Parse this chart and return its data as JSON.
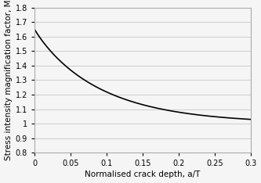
{
  "title": "",
  "xlabel": "Normalised crack depth, a/T",
  "ylabel": "Stress intensity magnification factor, M",
  "xlim": [
    0,
    0.3
  ],
  "ylim": [
    0.8,
    1.8
  ],
  "xticks": [
    0,
    0.05,
    0.1,
    0.15,
    0.2,
    0.25,
    0.3
  ],
  "yticks": [
    0.8,
    0.9,
    1.0,
    1.1,
    1.2,
    1.3,
    1.4,
    1.5,
    1.6,
    1.7,
    1.8
  ],
  "line_color": "#000000",
  "line_width": 1.2,
  "background_color": "#f5f5f5",
  "grid_color": "#cccccc",
  "curve_A": 0.065,
  "curve_x0": 0.035,
  "curve_p": -0.62
}
